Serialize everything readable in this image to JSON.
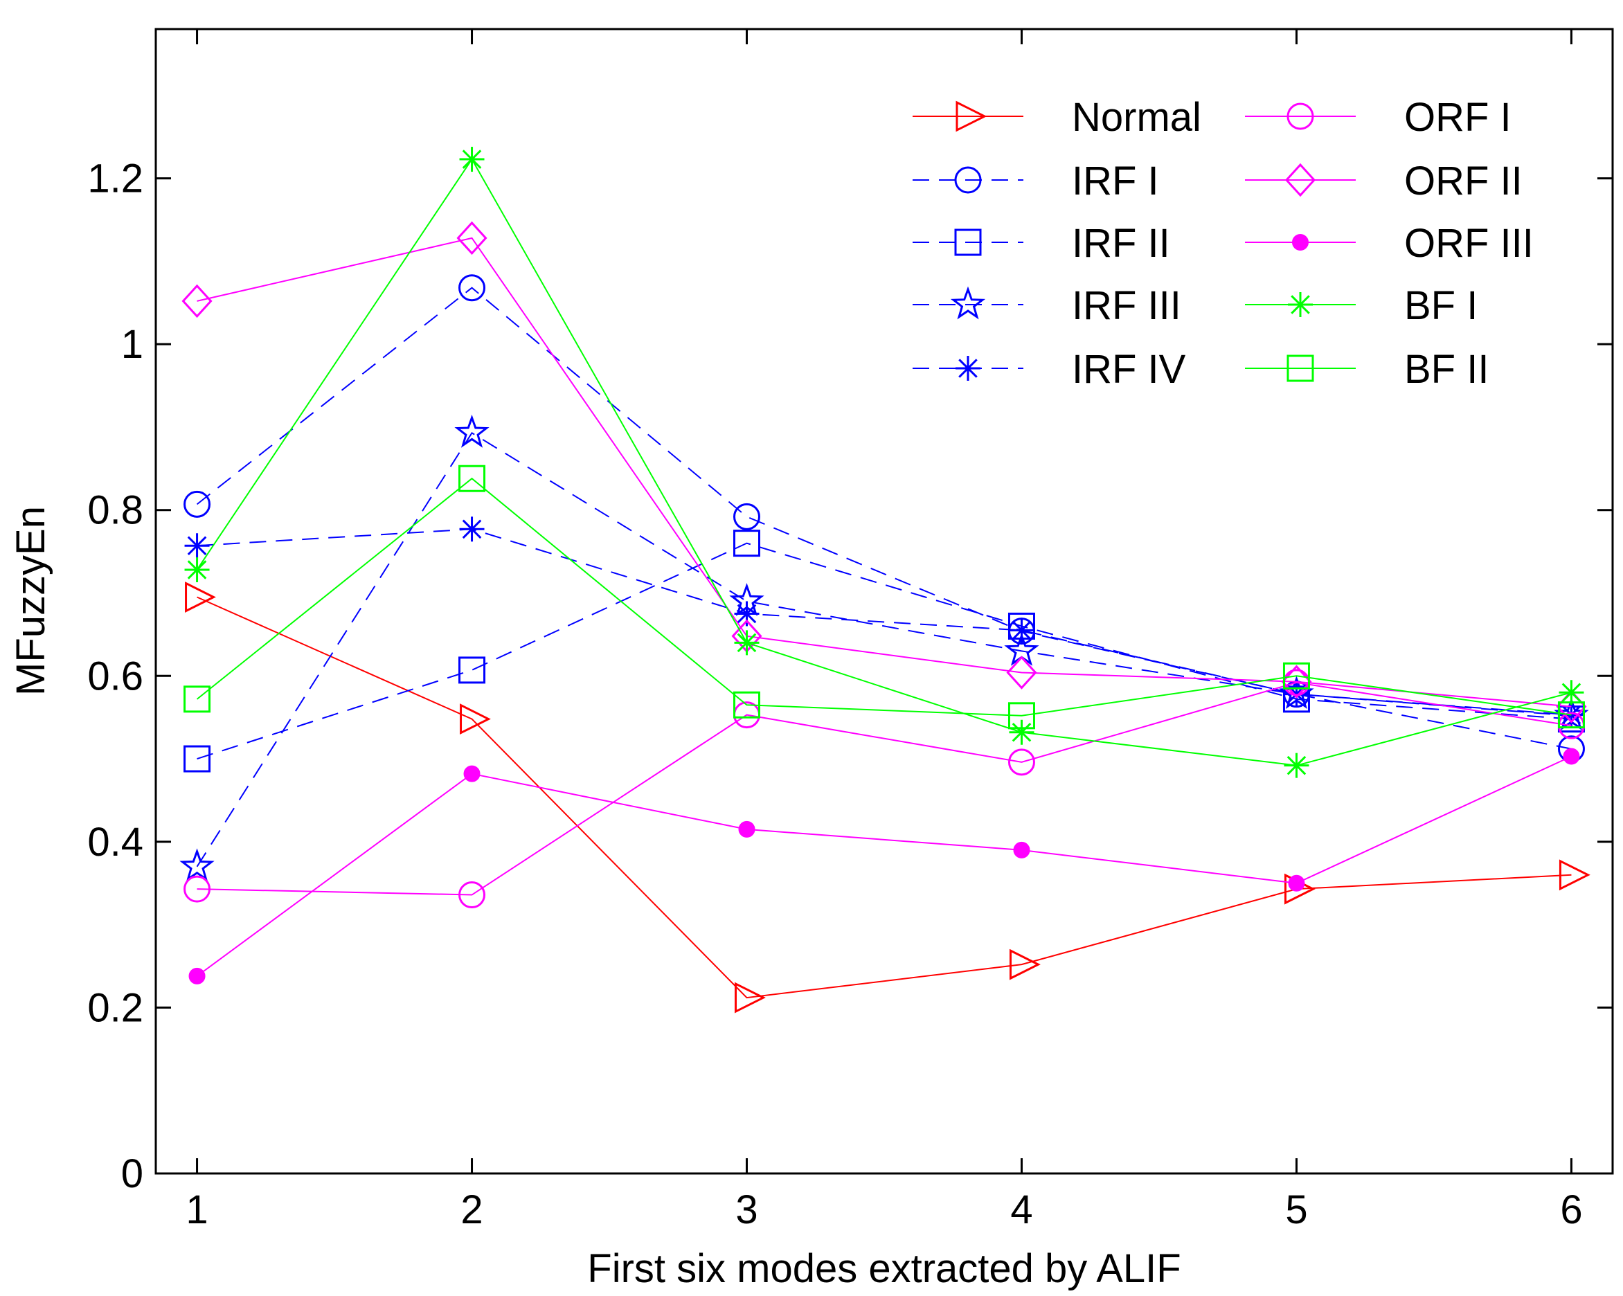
{
  "chart_data": {
    "type": "line",
    "title": "",
    "xlabel": "First six modes extracted by ALIF",
    "ylabel": "MFuzzyEn",
    "x": [
      1,
      2,
      3,
      4,
      5,
      6
    ],
    "xlim": [
      0.85,
      6.15
    ],
    "ylim": [
      0,
      1.38
    ],
    "xticks": [
      "1",
      "2",
      "3",
      "4",
      "5",
      "6"
    ],
    "yticks": [
      "0",
      "0.2",
      "0.4",
      "0.6",
      "0.8",
      "1",
      "1.2"
    ],
    "grid": false,
    "legend_position": "top-right",
    "series": [
      {
        "name": "Normal",
        "color": "#ff0000",
        "dash": "solid",
        "marker": "triangle-right",
        "values": [
          0.695,
          0.548,
          0.212,
          0.252,
          0.343,
          0.36
        ]
      },
      {
        "name": "IRF I",
        "color": "#0000ff",
        "dash": "dashed",
        "marker": "circle",
        "values": [
          0.807,
          1.068,
          0.792,
          0.654,
          0.578,
          0.512
        ]
      },
      {
        "name": "IRF II",
        "color": "#0000ff",
        "dash": "dashed",
        "marker": "square",
        "values": [
          0.5,
          0.607,
          0.76,
          0.66,
          0.572,
          0.548
        ]
      },
      {
        "name": "IRF III",
        "color": "#0000ff",
        "dash": "dashed",
        "marker": "star",
        "values": [
          0.37,
          0.893,
          0.69,
          0.63,
          0.578,
          0.552
        ]
      },
      {
        "name": "IRF IV",
        "color": "#0000ff",
        "dash": "dashed",
        "marker": "asterisk",
        "values": [
          0.757,
          0.777,
          0.675,
          0.655,
          0.578,
          0.553
        ]
      },
      {
        "name": "ORF I",
        "color": "#ff00ff",
        "dash": "solid",
        "marker": "circle",
        "values": [
          0.343,
          0.336,
          0.553,
          0.496,
          0.592,
          0.54
        ]
      },
      {
        "name": "ORF II",
        "color": "#ff00ff",
        "dash": "solid",
        "marker": "diamond",
        "values": [
          1.052,
          1.128,
          0.648,
          0.604,
          0.593,
          0.563
        ]
      },
      {
        "name": "ORF III",
        "color": "#ff00ff",
        "dash": "solid",
        "marker": "dot",
        "values": [
          0.238,
          0.482,
          0.415,
          0.39,
          0.35,
          0.503
        ]
      },
      {
        "name": "BF I",
        "color": "#00ff00",
        "dash": "solid",
        "marker": "asterisk",
        "values": [
          0.728,
          1.223,
          0.64,
          0.532,
          0.492,
          0.58
        ]
      },
      {
        "name": "BF II",
        "color": "#00ff00",
        "dash": "solid",
        "marker": "square",
        "values": [
          0.572,
          0.838,
          0.565,
          0.552,
          0.6,
          0.553
        ]
      }
    ]
  }
}
